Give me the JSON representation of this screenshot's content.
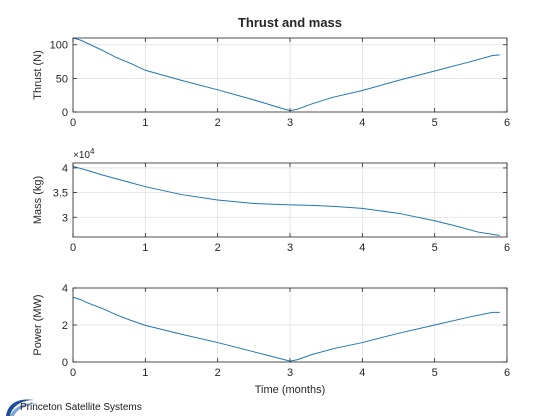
{
  "chart_data": [
    {
      "type": "line",
      "title": "Thrust and mass",
      "ylabel": "Thrust (N)",
      "xlabel": "",
      "xlim": [
        0,
        6
      ],
      "ylim": [
        0,
        110
      ],
      "xticks": [
        0,
        1,
        2,
        3,
        4,
        5,
        6
      ],
      "yticks": [
        0,
        50,
        100
      ],
      "grid": true,
      "series": [
        {
          "x": [
            0,
            0.1,
            0.2,
            0.4,
            0.6,
            0.8,
            1.0,
            1.5,
            2.0,
            2.5,
            2.9,
            3.0,
            3.1,
            3.3,
            3.6,
            4.0,
            4.5,
            5.0,
            5.5,
            5.8,
            5.9
          ],
          "y": [
            110,
            107,
            102,
            92,
            81,
            72,
            62,
            47,
            33,
            18,
            5,
            2,
            4,
            12,
            22,
            32,
            47,
            61,
            75,
            84,
            85
          ],
          "color": "#1f77b4"
        }
      ]
    },
    {
      "type": "line",
      "title": "",
      "ylabel": "Mass (kg)",
      "xlabel": "",
      "exponent_label": "×10",
      "exponent_power": "4",
      "xlim": [
        0,
        6
      ],
      "ylim": [
        2.6,
        4.1
      ],
      "xticks": [
        0,
        1,
        2,
        3,
        4,
        5,
        6
      ],
      "yticks": [
        3,
        3.5,
        4
      ],
      "grid": true,
      "series": [
        {
          "x": [
            0,
            0.2,
            0.4,
            0.7,
            1.0,
            1.5,
            2.0,
            2.5,
            3.0,
            3.3,
            3.6,
            4.0,
            4.5,
            5.0,
            5.3,
            5.6,
            5.9
          ],
          "y": [
            4.03,
            3.95,
            3.86,
            3.74,
            3.62,
            3.46,
            3.35,
            3.28,
            3.25,
            3.24,
            3.22,
            3.18,
            3.08,
            2.93,
            2.82,
            2.7,
            2.63
          ],
          "color": "#1f77b4"
        }
      ]
    },
    {
      "type": "line",
      "title": "",
      "ylabel": "Power (MW)",
      "xlabel": "Time (months)",
      "xlim": [
        0,
        6
      ],
      "ylim": [
        0,
        4
      ],
      "xticks": [
        0,
        1,
        2,
        3,
        4,
        5,
        6
      ],
      "yticks": [
        0,
        2,
        4
      ],
      "grid": true,
      "series": [
        {
          "x": [
            0,
            0.1,
            0.2,
            0.4,
            0.6,
            0.8,
            1.0,
            1.5,
            2.0,
            2.5,
            2.9,
            3.0,
            3.1,
            3.3,
            3.6,
            4.0,
            4.5,
            5.0,
            5.5,
            5.8,
            5.9
          ],
          "y": [
            3.5,
            3.38,
            3.2,
            2.9,
            2.55,
            2.25,
            1.98,
            1.5,
            1.05,
            0.55,
            0.15,
            0.05,
            0.12,
            0.4,
            0.72,
            1.05,
            1.55,
            2.0,
            2.45,
            2.68,
            2.68
          ],
          "color": "#1f77b4"
        }
      ]
    }
  ],
  "logo": {
    "text": "Princeton Satellite Systems",
    "colors": {
      "arc": "#1f4e99",
      "arc_light": "#7fa6d9"
    }
  }
}
